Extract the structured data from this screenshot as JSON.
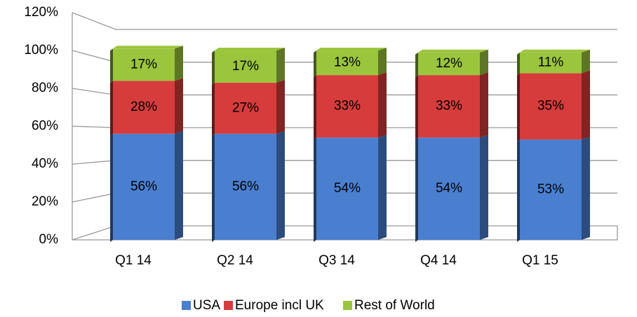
{
  "chart_data": {
    "type": "stacked_bar",
    "categories": [
      "Q1 14",
      "Q2 14",
      "Q3 14",
      "Q4 14",
      "Q1 15"
    ],
    "series": [
      {
        "name": "USA",
        "color": "#4a7fd0",
        "values": [
          56,
          56,
          54,
          54,
          53
        ],
        "value_labels": [
          "56%",
          "56%",
          "54%",
          "54%",
          "53%"
        ]
      },
      {
        "name": "Europe incl UK",
        "color": "#d63c3c",
        "values": [
          28,
          27,
          33,
          33,
          35
        ],
        "value_labels": [
          "28%",
          "27%",
          "33%",
          "33%",
          "35%"
        ]
      },
      {
        "name": "Rest of World",
        "color": "#9bc53d",
        "values": [
          17,
          17,
          13,
          12,
          11
        ],
        "value_labels": [
          "17%",
          "17%",
          "13%",
          "12%",
          "11%"
        ]
      }
    ],
    "ylim": [
      0,
      120
    ],
    "yticks": [
      {
        "value": 0,
        "label": "0%"
      },
      {
        "value": 20,
        "label": "20%"
      },
      {
        "value": 40,
        "label": "40%"
      },
      {
        "value": 60,
        "label": "60%"
      },
      {
        "value": 80,
        "label": "80%"
      },
      {
        "value": 100,
        "label": "100%"
      },
      {
        "value": 120,
        "label": "120%"
      }
    ],
    "grid": true,
    "legend": "bottom"
  }
}
